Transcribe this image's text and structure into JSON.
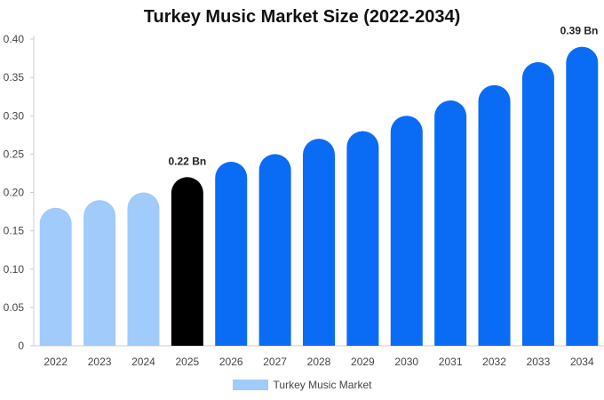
{
  "chart_data": {
    "type": "bar",
    "title": "Turkey Music Market Size (2022-2034)",
    "xlabel": "",
    "ylabel": "",
    "categories": [
      "2022",
      "2023",
      "2024",
      "2025",
      "2026",
      "2027",
      "2028",
      "2029",
      "2030",
      "2031",
      "2032",
      "2033",
      "2034"
    ],
    "series": [
      {
        "name": "Turkey Music Market",
        "values": [
          0.18,
          0.19,
          0.2,
          0.22,
          0.24,
          0.25,
          0.27,
          0.28,
          0.3,
          0.32,
          0.34,
          0.37,
          0.39
        ]
      }
    ],
    "ylim": [
      0,
      0.4
    ],
    "yticks": [
      "0",
      "0.05",
      "0.10",
      "0.15",
      "0.20",
      "0.25",
      "0.30",
      "0.35",
      "0.40"
    ],
    "annotations": [
      {
        "category": "2025",
        "text": "0.22 Bn"
      },
      {
        "category": "2034",
        "text": "0.39 Bn"
      }
    ],
    "grid": false,
    "legend_position": "bottom-center",
    "bar_colors": {
      "historical": "#a0cbfa",
      "base_year": "#000000",
      "forecast": "#0a6cf5"
    },
    "bar_color_sequence": [
      "historical",
      "historical",
      "historical",
      "base_year",
      "forecast",
      "forecast",
      "forecast",
      "forecast",
      "forecast",
      "forecast",
      "forecast",
      "forecast",
      "forecast"
    ],
    "legend_color": "#a0cbfa"
  }
}
